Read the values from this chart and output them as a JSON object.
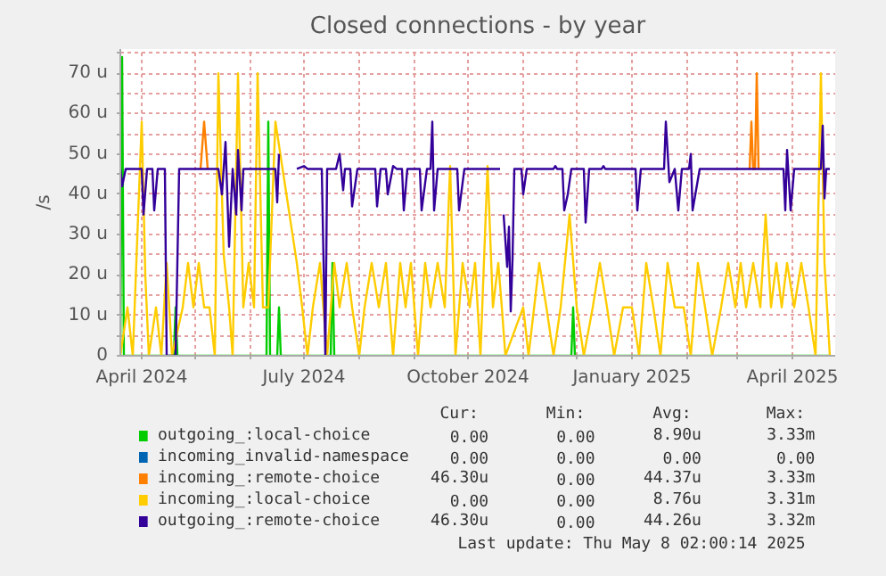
{
  "chart_data": {
    "type": "line",
    "title": "Closed connections - by year",
    "ylabel": "/s",
    "xlim": [
      "2024-03-20",
      "2025-04-25"
    ],
    "ylim": [
      0,
      76
    ],
    "xticks": [
      {
        "value": "2024-04-01",
        "label": "April 2024"
      },
      {
        "value": "2024-05-01",
        "label": null
      },
      {
        "value": "2024-06-01",
        "label": null
      },
      {
        "value": "2024-07-01",
        "label": "July 2024"
      },
      {
        "value": "2024-08-01",
        "label": null
      },
      {
        "value": "2024-09-01",
        "label": null
      },
      {
        "value": "2024-10-01",
        "label": "October 2024"
      },
      {
        "value": "2024-11-01",
        "label": null
      },
      {
        "value": "2024-12-01",
        "label": null
      },
      {
        "value": "2025-01-01",
        "label": "January 2025"
      },
      {
        "value": "2025-02-01",
        "label": null
      },
      {
        "value": "2025-03-01",
        "label": null
      },
      {
        "value": "2025-04-01",
        "label": "April 2025"
      }
    ],
    "yticks": [
      0,
      {
        "value": 5,
        "label": null
      },
      {
        "value": 10,
        "label": "10 u"
      },
      {
        "value": 15,
        "label": null
      },
      {
        "value": 20,
        "label": "20 u"
      },
      {
        "value": 25,
        "label": null
      },
      {
        "value": 30,
        "label": "30 u"
      },
      {
        "value": 35,
        "label": null
      },
      {
        "value": 40,
        "label": "40 u"
      },
      {
        "value": 45,
        "label": null
      },
      {
        "value": 50,
        "label": "50 u"
      },
      {
        "value": 55,
        "label": null
      },
      {
        "value": 60,
        "label": "60 u"
      },
      {
        "value": 65,
        "label": null
      },
      {
        "value": 70,
        "label": "70 u"
      },
      {
        "value": 75,
        "label": null
      }
    ],
    "grid": true,
    "legend": "bottom",
    "series": [
      {
        "name": "outgoing_:local-choice",
        "color": "#00cc00",
        "x": [
          "2024-03-20",
          "2024-03-21",
          "2024-03-22",
          "2024-04-19",
          "2024-04-20",
          "2024-04-21",
          "2024-06-10",
          "2024-06-11",
          "2024-06-12",
          "2024-06-16",
          "2024-06-17",
          "2024-06-18",
          "2024-07-16",
          "2024-07-17",
          "2024-07-18",
          "2024-11-28",
          "2024-11-29",
          "2024-11-30",
          "2025-04-22"
        ],
        "values": [
          0,
          74,
          0,
          0,
          12,
          0,
          0,
          58,
          0,
          0,
          12,
          0,
          0,
          23,
          0,
          0,
          12,
          0,
          0
        ]
      },
      {
        "name": "incoming_invalid-namespace",
        "color": "#0066b3"
      },
      {
        "name": "incoming_:remote-choice",
        "color": "#ff8000",
        "x": [
          "2024-05-04",
          "2024-05-06",
          "2024-05-08",
          "2024-05-09",
          "2025-03-08",
          "2025-03-09",
          "2025-03-10",
          "2025-03-11",
          "2025-03-12",
          "2025-03-13"
        ],
        "values": [
          46.3,
          58,
          46.3,
          null,
          46.3,
          58,
          46.3,
          46.3,
          70,
          46.3
        ]
      },
      {
        "name": "incoming_:local-choice",
        "color": "#ffcc00",
        "x": [
          "2024-03-20",
          "2024-03-24",
          "2024-03-27",
          "2024-03-30",
          "2024-04-01",
          "2024-04-03",
          "2024-04-05",
          "2024-04-09",
          "2024-04-12",
          "2024-04-15",
          "2024-04-18",
          "2024-04-24",
          "2024-04-27",
          "2024-04-30",
          "2024-05-03",
          "2024-05-06",
          "2024-05-09",
          "2024-05-12",
          "2024-05-14",
          "2024-05-17",
          "2024-05-20",
          "2024-05-22",
          "2024-05-25",
          "2024-05-28",
          "2024-05-31",
          "2024-06-03",
          "2024-06-05",
          "2024-06-08",
          "2024-06-11",
          "2024-06-15",
          "2024-06-27",
          "2024-06-30",
          "2024-07-03",
          "2024-07-06",
          "2024-07-10",
          "2024-07-14",
          "2024-07-18",
          "2024-07-21",
          "2024-07-25",
          "2024-07-28",
          "2024-08-01",
          "2024-08-04",
          "2024-08-08",
          "2024-08-12",
          "2024-08-16",
          "2024-08-20",
          "2024-08-24",
          "2024-08-27",
          "2024-08-30",
          "2024-09-03",
          "2024-09-07",
          "2024-09-10",
          "2024-09-14",
          "2024-09-18",
          "2024-09-21",
          "2024-09-24",
          "2024-09-28",
          "2024-10-02",
          "2024-10-05",
          "2024-10-08",
          "2024-10-12",
          "2024-10-15",
          "2024-10-18",
          "2024-10-20",
          "2024-10-22",
          "2024-11-01",
          "2024-11-04",
          "2024-11-10",
          "2024-11-14",
          "2024-11-18",
          "2024-11-22",
          "2024-11-27",
          "2024-12-01",
          "2024-12-05",
          "2024-12-10",
          "2024-12-14",
          "2024-12-18",
          "2024-12-22",
          "2024-12-27",
          "2025-01-01",
          "2025-01-05",
          "2025-01-09",
          "2025-01-13",
          "2025-01-17",
          "2025-01-21",
          "2025-01-25",
          "2025-01-30",
          "2025-02-03",
          "2025-02-07",
          "2025-02-11",
          "2025-02-15",
          "2025-02-20",
          "2025-02-24",
          "2025-02-28",
          "2025-03-03",
          "2025-03-06",
          "2025-03-10",
          "2025-03-14",
          "2025-03-17",
          "2025-03-20",
          "2025-03-23",
          "2025-03-26",
          "2025-03-29",
          "2025-04-02",
          "2025-04-06",
          "2025-04-10",
          "2025-04-14",
          "2025-04-17",
          "2025-04-19",
          "2025-04-22"
        ],
        "values": [
          0,
          12,
          0,
          35,
          58,
          20,
          0,
          12,
          0,
          23,
          0,
          12,
          23,
          12,
          23,
          12,
          12,
          0,
          70,
          25,
          12,
          0,
          70,
          12,
          23,
          12,
          70,
          12,
          12,
          58,
          23,
          12,
          0,
          12,
          23,
          0,
          23,
          12,
          23,
          12,
          0,
          12,
          23,
          12,
          23,
          0,
          23,
          12,
          23,
          0,
          23,
          12,
          23,
          12,
          47,
          0,
          23,
          12,
          23,
          0,
          47,
          12,
          23,
          12,
          0,
          12,
          0,
          23,
          12,
          0,
          12,
          35,
          12,
          0,
          12,
          23,
          12,
          0,
          12,
          12,
          0,
          23,
          12,
          0,
          23,
          12,
          12,
          0,
          23,
          12,
          0,
          12,
          23,
          12,
          23,
          12,
          23,
          12,
          35,
          12,
          23,
          12,
          23,
          12,
          23,
          12,
          0,
          70,
          23,
          0
        ]
      },
      {
        "name": "outgoing_:remote-choice",
        "color": "#330099",
        "x": [
          "2024-03-20",
          "2024-03-21",
          "2024-03-23",
          "2024-04-01",
          "2024-04-02",
          "2024-04-04",
          "2024-04-07",
          "2024-04-08",
          "2024-04-10",
          "2024-04-14",
          "2024-04-15",
          "2024-04-20",
          "2024-04-22",
          "2024-05-14",
          "2024-05-16",
          "2024-05-18",
          "2024-05-20",
          "2024-05-22",
          "2024-05-24",
          "2024-05-25",
          "2024-05-27",
          "2024-05-28",
          "2024-06-15",
          "2024-06-16",
          "2024-06-17",
          "2024-06-22",
          "2024-06-27",
          "2024-07-01",
          "2024-07-03",
          "2024-07-11",
          "2024-07-13",
          "2024-07-14",
          "2024-07-19",
          "2024-07-21",
          "2024-07-23",
          "2024-07-24",
          "2024-07-27",
          "2024-07-28",
          "2024-07-31",
          "2024-08-10",
          "2024-08-11",
          "2024-08-13",
          "2024-08-16",
          "2024-08-17",
          "2024-08-20",
          "2024-08-22",
          "2024-08-25",
          "2024-08-26",
          "2024-08-28",
          "2024-09-04",
          "2024-09-05",
          "2024-09-08",
          "2024-09-10",
          "2024-09-11",
          "2024-09-12",
          "2024-09-14",
          "2024-09-25",
          "2024-09-26",
          "2024-09-29",
          "2024-10-19",
          "2024-10-20",
          "2024-10-21",
          "2024-10-23",
          "2024-10-24",
          "2024-10-25",
          "2024-10-26",
          "2024-10-27",
          "2024-10-31",
          "2024-11-01",
          "2024-11-03",
          "2024-11-18",
          "2024-11-19",
          "2024-11-20",
          "2024-11-23",
          "2024-11-24",
          "2024-11-26",
          "2024-11-28",
          "2024-12-05",
          "2024-12-06",
          "2024-12-08",
          "2024-12-15",
          "2024-12-16",
          "2024-12-17",
          "2025-01-03",
          "2025-01-04",
          "2025-01-06",
          "2025-01-19",
          "2025-01-20",
          "2025-01-22",
          "2025-01-25",
          "2025-01-27",
          "2025-01-29",
          "2025-02-02",
          "2025-02-03",
          "2025-02-04",
          "2025-02-08",
          "2025-03-27",
          "2025-03-28",
          "2025-03-29",
          "2025-03-31",
          "2025-04-02",
          "2025-04-17",
          "2025-04-18",
          "2025-04-19",
          "2025-04-20",
          "2025-04-22"
        ],
        "values": [
          46.3,
          42,
          46.3,
          46.3,
          35,
          46.3,
          46.3,
          36,
          46.3,
          46.3,
          0,
          0,
          46.3,
          46.3,
          40,
          53,
          27,
          46.3,
          35,
          51,
          36,
          46.3,
          46.3,
          38,
          50,
          null,
          46.3,
          47,
          46.3,
          46.3,
          0,
          46.3,
          46.3,
          50,
          41,
          46.3,
          46.3,
          37,
          46.3,
          46.3,
          37,
          46.3,
          46.3,
          40,
          47,
          46.3,
          46.3,
          36,
          46.3,
          46.3,
          36,
          46.3,
          46.3,
          58,
          36,
          46.3,
          46.3,
          36,
          46.3,
          46.3,
          null,
          35,
          22,
          32,
          11,
          24,
          46.3,
          46.3,
          40,
          46.3,
          46.3,
          47,
          46.3,
          46.3,
          36,
          40,
          46.3,
          46.3,
          33,
          46.3,
          46.3,
          47,
          46.3,
          46.3,
          36,
          46.3,
          46.3,
          58,
          43,
          46.3,
          36,
          46.3,
          46.3,
          50,
          36,
          46.3,
          46.3,
          36,
          51,
          36,
          46.3,
          46.3,
          57,
          39,
          46.3,
          46.3
        ]
      }
    ],
    "annotations": [
      "Cur:",
      "Min:",
      "Avg:",
      "Max:",
      "0.00",
      "0.00",
      "8.90u",
      "3.33m",
      "0.00",
      "0.00",
      "0.00",
      "0.00",
      "46.30u",
      "0.00",
      "44.37u",
      "3.33m",
      "0.00",
      "0.00",
      "8.76u",
      "3.31m",
      "46.30u",
      "0.00",
      "44.26u",
      "3.32m",
      "Last update: Thu May  8 02:00:14 2025"
    ]
  }
}
